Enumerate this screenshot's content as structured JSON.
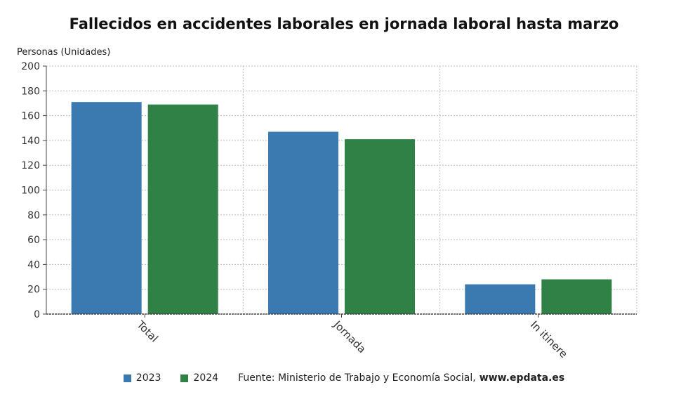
{
  "chart_data": {
    "type": "bar",
    "title": "Fallecidos en accidentes laborales en jornada laboral hasta marzo",
    "ylabel": "Personas (Unidades)",
    "xlabel": "",
    "categories": [
      "Total",
      "Jornada",
      "In itinere"
    ],
    "series": [
      {
        "name": "2023",
        "color": "#3a7ab1",
        "values": [
          171,
          147,
          24
        ]
      },
      {
        "name": "2024",
        "color": "#2f8145",
        "values": [
          169,
          141,
          28
        ]
      }
    ],
    "ylim": [
      0,
      200
    ],
    "yticks": [
      0,
      20,
      40,
      60,
      80,
      100,
      120,
      140,
      160,
      180,
      200
    ],
    "grid": true,
    "legend": "bottom"
  },
  "footer": {
    "source_label": "Fuente: Ministerio de Trabajo y Economía Social,",
    "source_web": "www.epdata.es"
  }
}
